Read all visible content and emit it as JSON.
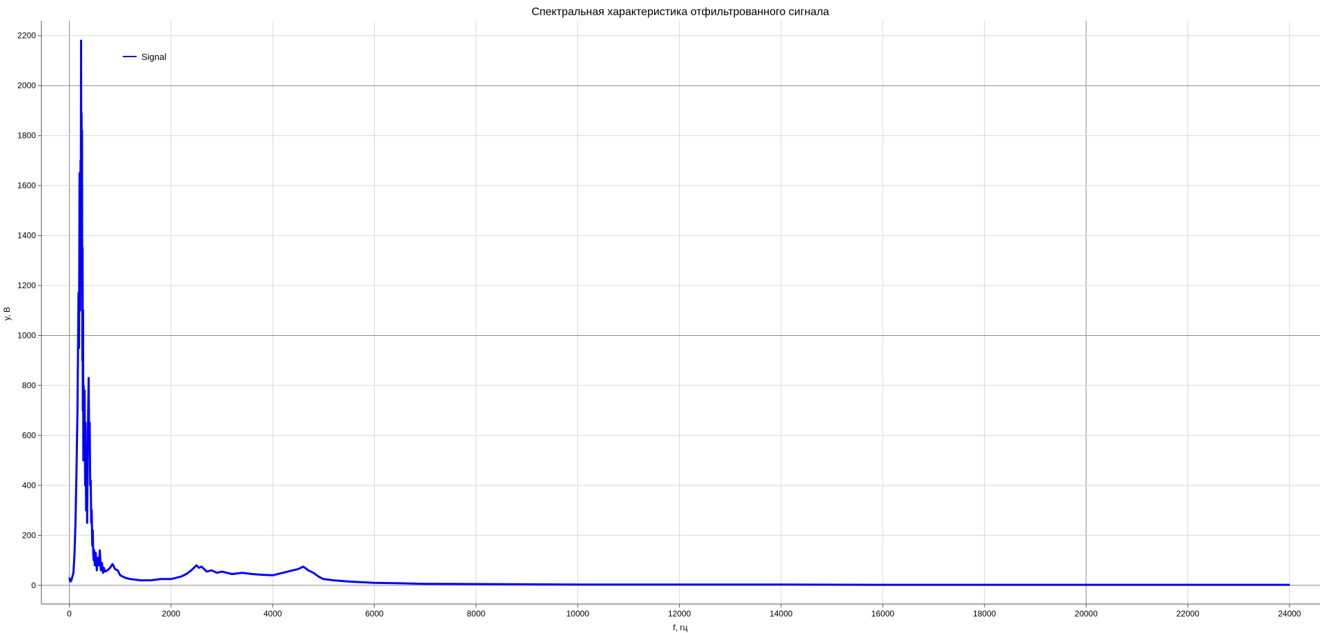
{
  "chart_data": {
    "type": "line",
    "title": "Спектральная характеристика отфильтрованного сигнала",
    "xlabel": "f, гц",
    "ylabel": "y, В",
    "xlim": [
      -550,
      24600
    ],
    "ylim": [
      -75,
      2260
    ],
    "x_ticks": [
      0,
      2000,
      4000,
      6000,
      8000,
      10000,
      12000,
      14000,
      16000,
      18000,
      20000,
      22000,
      24000
    ],
    "y_ticks": [
      0,
      200,
      400,
      600,
      800,
      1000,
      1200,
      1400,
      1600,
      1800,
      2000,
      2200
    ],
    "grid": true,
    "legend_position": "top-left",
    "colors": {
      "series": "#0000ff",
      "grid": "#d8d8d8",
      "major_grid": "#8a8a8a",
      "axis": "#555555"
    },
    "series": [
      {
        "name": "Signal",
        "x": [
          0,
          20,
          40,
          60,
          80,
          100,
          120,
          140,
          160,
          180,
          190,
          200,
          210,
          220,
          225,
          230,
          235,
          240,
          245,
          250,
          255,
          260,
          265,
          270,
          275,
          280,
          290,
          300,
          310,
          320,
          330,
          340,
          350,
          360,
          370,
          380,
          390,
          400,
          410,
          420,
          430,
          440,
          450,
          460,
          470,
          480,
          490,
          500,
          520,
          540,
          560,
          580,
          600,
          620,
          640,
          660,
          680,
          700,
          750,
          800,
          850,
          900,
          950,
          1000,
          1100,
          1200,
          1400,
          1600,
          1800,
          2000,
          2200,
          2300,
          2400,
          2500,
          2550,
          2600,
          2700,
          2800,
          2900,
          3000,
          3200,
          3400,
          3600,
          3800,
          4000,
          4200,
          4400,
          4500,
          4600,
          4700,
          4800,
          4900,
          5000,
          5200,
          5500,
          6000,
          6500,
          7000,
          8000,
          9000,
          10000,
          12000,
          14000,
          16000,
          18000,
          20000,
          22000,
          24000
        ],
        "values": [
          30,
          15,
          20,
          35,
          50,
          120,
          250,
          450,
          700,
          1170,
          950,
          1650,
          1100,
          1700,
          1450,
          2180,
          1600,
          1890,
          1300,
          1820,
          900,
          1350,
          700,
          1100,
          500,
          800,
          600,
          780,
          400,
          650,
          300,
          500,
          250,
          450,
          700,
          830,
          550,
          650,
          400,
          420,
          250,
          300,
          160,
          220,
          120,
          100,
          140,
          80,
          130,
          60,
          110,
          80,
          140,
          60,
          90,
          50,
          70,
          55,
          60,
          70,
          85,
          65,
          60,
          40,
          30,
          25,
          20,
          20,
          25,
          25,
          35,
          45,
          60,
          80,
          70,
          75,
          55,
          60,
          50,
          55,
          45,
          50,
          45,
          42,
          40,
          50,
          60,
          65,
          75,
          60,
          50,
          35,
          25,
          20,
          15,
          10,
          8,
          6,
          5,
          4,
          3,
          3,
          3,
          2,
          2,
          2,
          2,
          2
        ]
      }
    ]
  }
}
